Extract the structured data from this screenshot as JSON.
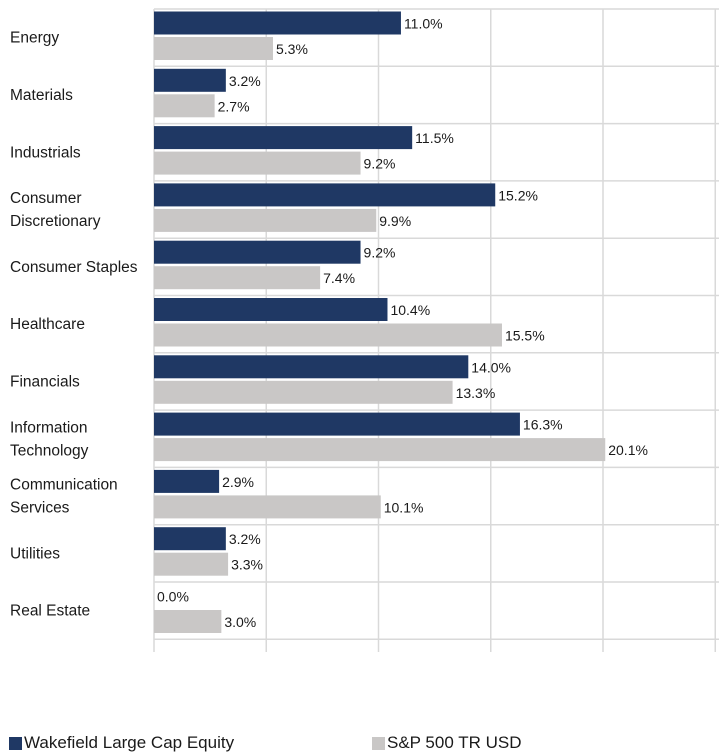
{
  "chart_data": {
    "type": "bar",
    "orientation": "horizontal",
    "categories": [
      "Energy",
      "Materials",
      "Industrials",
      "Consumer Discretionary",
      "Consumer Staples",
      "Healthcare",
      "Financials",
      "Information Technology",
      "Communication Services",
      "Utilities",
      "Real Estate"
    ],
    "category_label_lines": [
      [
        "Energy"
      ],
      [
        "Materials"
      ],
      [
        "Industrials"
      ],
      [
        "Consumer",
        "Discretionary"
      ],
      [
        "Consumer Staples"
      ],
      [
        "Healthcare"
      ],
      [
        "Financials"
      ],
      [
        "Information",
        "Technology"
      ],
      [
        "Communication",
        "Services"
      ],
      [
        "Utilities"
      ],
      [
        "Real Estate"
      ]
    ],
    "series": [
      {
        "name": "Wakefield Large Cap Equity",
        "color": "#1f3864",
        "values": [
          11.0,
          3.2,
          11.5,
          15.2,
          9.2,
          10.4,
          14.0,
          16.3,
          2.9,
          3.2,
          0.0
        ],
        "labels": [
          "11.0%",
          "3.2%",
          "11.5%",
          "15.2%",
          "9.2%",
          "10.4%",
          "14.0%",
          "16.3%",
          "2.9%",
          "3.2%",
          "0.0%"
        ]
      },
      {
        "name": "S&P 500 TR USD",
        "color": "#c9c7c6",
        "values": [
          5.3,
          2.7,
          9.2,
          9.9,
          7.4,
          15.5,
          13.3,
          20.1,
          10.1,
          3.3,
          3.0
        ],
        "labels": [
          "5.3%",
          "2.7%",
          "9.2%",
          "9.9%",
          "7.4%",
          "15.5%",
          "13.3%",
          "20.1%",
          "10.1%",
          "3.3%",
          "3.0%"
        ]
      }
    ],
    "xlim": [
      0,
      25
    ],
    "x_gridlines": [
      0,
      5,
      10,
      15,
      20,
      25
    ],
    "grid": true,
    "legend": "bottom-left",
    "title": "",
    "xlabel": "",
    "ylabel": ""
  }
}
